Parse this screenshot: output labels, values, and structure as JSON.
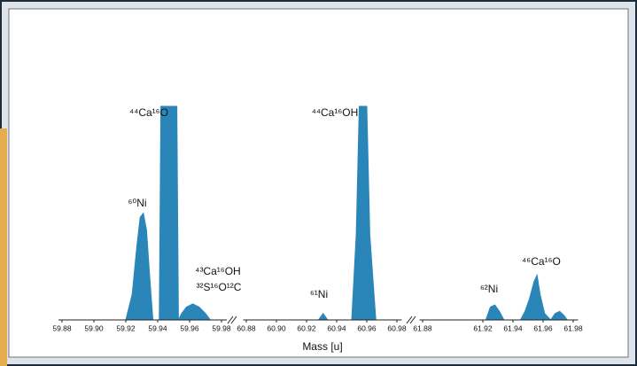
{
  "chart_data": {
    "type": "area",
    "x_label": "Mass [u]",
    "color": "#2a86b8",
    "ylim": [
      0,
      100
    ],
    "segments": [
      {
        "xlim": [
          59.875,
          59.985
        ],
        "xticks": [
          59.88,
          {
            "value": 59.9,
            "label": "59.90"
          },
          59.92,
          59.94,
          59.96,
          59.98
        ],
        "x": [
          59.88,
          59.92,
          59.924,
          59.927,
          59.929,
          59.931,
          59.933,
          59.935,
          59.937,
          59.941,
          59.942,
          59.952,
          59.953,
          59.955,
          59.958,
          59.962,
          59.966,
          59.97,
          59.973,
          59.98
        ],
        "values": [
          0,
          0,
          12,
          35,
          48,
          50,
          42,
          20,
          0,
          0,
          100,
          100,
          0,
          3,
          6,
          7.5,
          6,
          3,
          0,
          0
        ]
      },
      {
        "xlim": [
          60.875,
          60.985
        ],
        "xticks": [
          60.88,
          {
            "value": 60.9,
            "label": "60.90"
          },
          60.92,
          60.94,
          60.96,
          60.98
        ],
        "x": [
          60.88,
          60.928,
          60.931,
          60.934,
          60.95,
          60.953,
          60.955,
          60.96,
          60.962,
          60.966,
          60.98
        ],
        "values": [
          0,
          0,
          3,
          0,
          0,
          40,
          100,
          100,
          40,
          0,
          0
        ]
      },
      {
        "xlim": [
          61.875,
          61.985
        ],
        "xticks": [
          61.88,
          61.92,
          61.94,
          61.96,
          61.98
        ],
        "x": [
          61.88,
          61.922,
          61.925,
          61.928,
          61.931,
          61.934,
          61.945,
          61.948,
          61.951,
          61.954,
          61.956,
          61.958,
          61.961,
          61.965,
          61.968,
          61.971,
          61.974,
          61.976,
          61.98
        ],
        "values": [
          0,
          0,
          6,
          7,
          4,
          0,
          0,
          4,
          10,
          18,
          21,
          12,
          3,
          0,
          3,
          4,
          2,
          0,
          0
        ]
      }
    ],
    "annotations": [
      "⁴⁴Ca¹⁶O",
      "⁶⁰Ni",
      "⁴³Ca¹⁶OH",
      "³²S¹⁶O¹²C",
      "⁶¹Ni",
      "⁴⁴Ca¹⁶OH",
      "⁶²Ni",
      "⁴⁶Ca¹⁶O"
    ]
  }
}
